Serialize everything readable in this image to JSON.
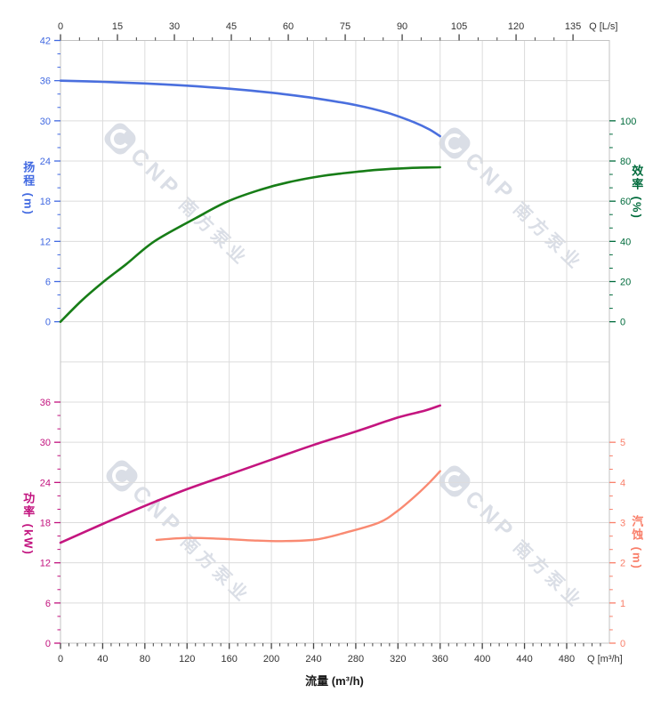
{
  "watermark": {
    "logo_text": "CNP",
    "brand_text": "南方泵业",
    "color": "#b7bfce"
  },
  "chart_data": {
    "type": "line",
    "grid": true,
    "x_axis_top": {
      "label": "Q [L/s]",
      "major_ticks": [
        0,
        15,
        30,
        45,
        60,
        75,
        90,
        105,
        120,
        135
      ],
      "minor_step": 5,
      "color": "#333333"
    },
    "x_axis_bottom": {
      "label": "Q [m³/h]",
      "title": "流量 (m³/h)",
      "major_ticks": [
        0,
        40,
        80,
        120,
        160,
        200,
        240,
        280,
        320,
        360,
        400,
        440,
        480
      ],
      "minor_step": 8,
      "range": [
        0,
        520.5
      ],
      "color": "#333333"
    },
    "axes": {
      "head": {
        "title": "扬程 (m)",
        "side": "left",
        "color": "#4169e1",
        "min": 0,
        "max": 42,
        "major_step": 6,
        "minor_step": 2,
        "zero_row": 7,
        "tick_labels": [
          0,
          6,
          12,
          18,
          24,
          30,
          36,
          42
        ]
      },
      "efficiency": {
        "title": "效率 (%)",
        "side": "right",
        "color": "#006b3c",
        "min": 0,
        "max": 100,
        "major_step": 20,
        "minor_step": 6.667,
        "zero_row": 7,
        "tick_labels": [
          0,
          20,
          40,
          60,
          80,
          100
        ]
      },
      "power": {
        "title": "功率 (kW)",
        "side": "left",
        "color": "#c2127e",
        "min": 0,
        "max": 36,
        "major_step": 6,
        "minor_step": 2,
        "zero_row": 15,
        "tick_labels": [
          0,
          6,
          12,
          18,
          24,
          30,
          36
        ]
      },
      "npsh": {
        "title": "汽蚀 (m)",
        "side": "right",
        "color": "#f97f6a",
        "min": 0,
        "max": 5,
        "major_step": 1,
        "minor_step": 0.333,
        "zero_row": 15,
        "tick_labels": [
          0,
          1,
          2,
          3,
          4,
          5
        ]
      }
    },
    "series": [
      {
        "name": "head",
        "axis": "head",
        "color": "#4a6fde",
        "width": 2.6,
        "points": [
          [
            0,
            36
          ],
          [
            40,
            35.82
          ],
          [
            80,
            35.58
          ],
          [
            120,
            35.25
          ],
          [
            160,
            34.8
          ],
          [
            200,
            34.2
          ],
          [
            240,
            33.4
          ],
          [
            280,
            32.35
          ],
          [
            310,
            31.2
          ],
          [
            335,
            29.8
          ],
          [
            350,
            28.7
          ],
          [
            360,
            27.7
          ]
        ]
      },
      {
        "name": "efficiency",
        "axis": "efficiency",
        "color": "#177d17",
        "width": 2.6,
        "points": [
          [
            0,
            0
          ],
          [
            20,
            10.5
          ],
          [
            41,
            20
          ],
          [
            62,
            28.5
          ],
          [
            89,
            40
          ],
          [
            128,
            51.5
          ],
          [
            159,
            60
          ],
          [
            190,
            65.8
          ],
          [
            215,
            69.3
          ],
          [
            245,
            72.3
          ],
          [
            270,
            74
          ],
          [
            300,
            75.6
          ],
          [
            330,
            76.5
          ],
          [
            360,
            76.9
          ]
        ]
      },
      {
        "name": "power",
        "axis": "power",
        "color": "#c4157f",
        "width": 2.6,
        "points": [
          [
            0,
            15
          ],
          [
            40,
            17.8
          ],
          [
            80,
            20.5
          ],
          [
            120,
            23
          ],
          [
            160,
            25.2
          ],
          [
            200,
            27.4
          ],
          [
            240,
            29.6
          ],
          [
            280,
            31.6
          ],
          [
            320,
            33.7
          ],
          [
            345,
            34.7
          ],
          [
            360,
            35.5
          ]
        ]
      },
      {
        "name": "npsh",
        "axis": "npsh",
        "color": "#f98a72",
        "width": 2.4,
        "points": [
          [
            91,
            2.57
          ],
          [
            120,
            2.62
          ],
          [
            150,
            2.6
          ],
          [
            180,
            2.56
          ],
          [
            210,
            2.54
          ],
          [
            242,
            2.58
          ],
          [
            270,
            2.75
          ],
          [
            302,
            3.0
          ],
          [
            320,
            3.3
          ],
          [
            338,
            3.7
          ],
          [
            350,
            4.0
          ],
          [
            360,
            4.28
          ]
        ]
      }
    ]
  }
}
